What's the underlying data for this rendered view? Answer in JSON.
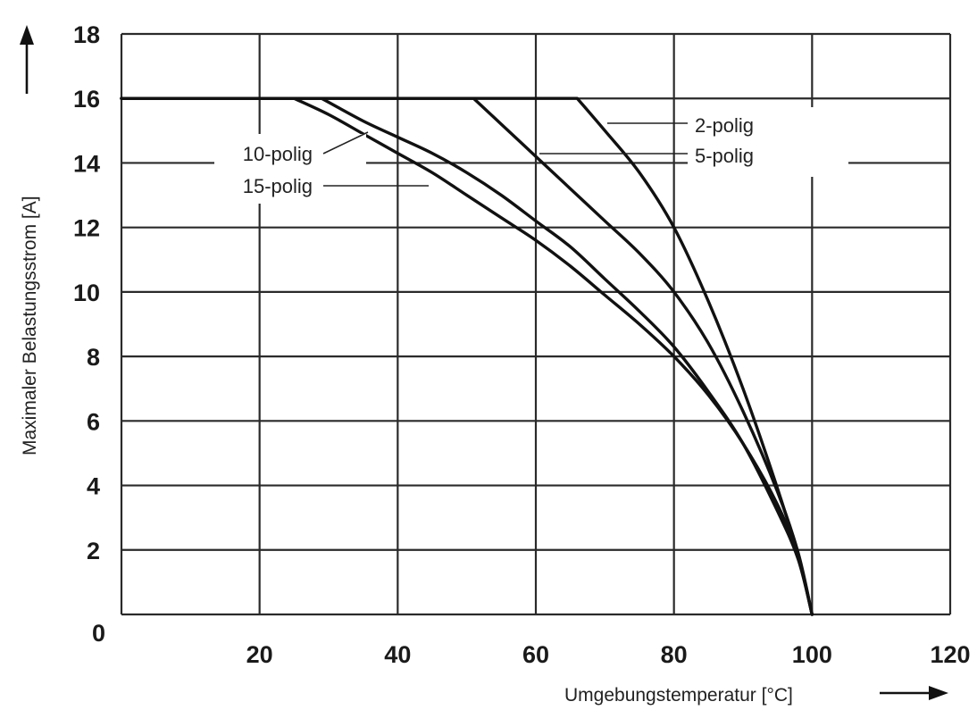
{
  "chart_data": {
    "type": "line",
    "xlabel": "Umgebungstemperatur [°C]",
    "ylabel": "Maximaler Belastungsstrom [A]",
    "xlim": [
      0,
      120
    ],
    "ylim": [
      0,
      18
    ],
    "x_ticks": [
      "20",
      "40",
      "60",
      "80",
      "100",
      "120"
    ],
    "y_ticks": [
      "0",
      "2",
      "4",
      "6",
      "8",
      "10",
      "12",
      "14",
      "16",
      "18"
    ],
    "grid": true,
    "series": [
      {
        "name": "2-polig",
        "x": [
          0,
          66,
          70,
          75,
          80,
          85,
          90,
          95,
          98,
          100
        ],
        "y": [
          16,
          16,
          15.0,
          13.7,
          12.0,
          9.7,
          7.0,
          3.9,
          1.8,
          0
        ]
      },
      {
        "name": "5-polig",
        "x": [
          0,
          51,
          55,
          60,
          65,
          70,
          75,
          80,
          85,
          90,
          95,
          98,
          100
        ],
        "y": [
          16,
          16,
          15.2,
          14.2,
          13.2,
          12.2,
          11.2,
          10.0,
          8.4,
          6.3,
          3.8,
          1.9,
          0
        ]
      },
      {
        "name": "10-polig",
        "x": [
          0,
          29,
          35,
          40,
          45,
          50,
          55,
          60,
          65,
          70,
          75,
          80,
          85,
          90,
          95,
          98,
          100
        ],
        "y": [
          16,
          16,
          15.3,
          14.8,
          14.3,
          13.7,
          13.0,
          12.2,
          11.4,
          10.4,
          9.4,
          8.3,
          6.9,
          5.3,
          3.2,
          1.7,
          0
        ]
      },
      {
        "name": "15-polig",
        "x": [
          0,
          25,
          30,
          35,
          40,
          45,
          50,
          55,
          60,
          65,
          70,
          75,
          80,
          85,
          90,
          95,
          98,
          100
        ],
        "y": [
          16,
          16,
          15.5,
          14.9,
          14.3,
          13.7,
          13.0,
          12.3,
          11.6,
          10.8,
          9.9,
          9.0,
          8.0,
          6.8,
          5.3,
          3.4,
          1.8,
          0
        ]
      }
    ]
  }
}
